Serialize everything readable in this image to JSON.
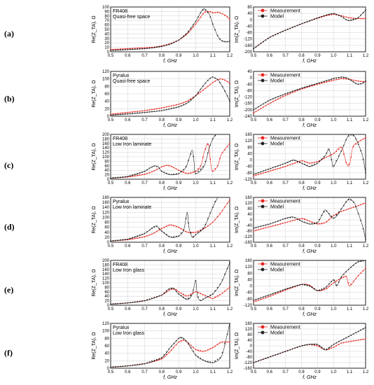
{
  "legend": {
    "measurement": "Measurement",
    "model": "Model"
  },
  "colors": {
    "measurement": "#e8261f",
    "model": "#222222"
  },
  "chart_data": [
    {
      "type": "line",
      "row": "(a)",
      "side": "left",
      "annotation": [
        "FR408",
        "Quasi-free space"
      ],
      "xlabel": "f, GHz",
      "ylabel": "Re(Z_TA), Ω",
      "xlim": [
        0.5,
        1.2
      ],
      "ylim": [
        0,
        100
      ],
      "yticks": [
        0,
        10,
        20,
        30,
        40,
        50,
        60,
        70,
        80,
        90,
        100
      ],
      "series": [
        {
          "name": "Measurement",
          "x": [
            0.5,
            0.55,
            0.6,
            0.65,
            0.7,
            0.75,
            0.8,
            0.85,
            0.9,
            0.95,
            1.0,
            1.03,
            1.05,
            1.08,
            1.1,
            1.13,
            1.15,
            1.18,
            1.2
          ],
          "y": [
            5,
            6,
            7,
            8,
            9,
            10,
            13,
            18,
            26,
            40,
            62,
            78,
            88,
            90,
            87,
            88,
            86,
            80,
            72
          ]
        },
        {
          "name": "Model",
          "x": [
            0.5,
            0.55,
            0.6,
            0.65,
            0.7,
            0.75,
            0.8,
            0.85,
            0.9,
            0.95,
            1.0,
            1.03,
            1.05,
            1.08,
            1.1,
            1.13,
            1.15,
            1.18,
            1.2
          ],
          "y": [
            3,
            4,
            5,
            6,
            7,
            9,
            12,
            17,
            26,
            42,
            68,
            88,
            96,
            84,
            62,
            35,
            25,
            22,
            24
          ]
        }
      ]
    },
    {
      "type": "line",
      "row": "(a)",
      "side": "right",
      "xlabel": "f, GHz",
      "ylabel": "Im(Z_TA), Ω",
      "xlim": [
        0.5,
        1.2
      ],
      "ylim": [
        -200,
        80
      ],
      "yticks": [
        -200,
        -160,
        -120,
        -80,
        -40,
        0,
        40,
        80
      ],
      "series": [
        {
          "name": "Measurement",
          "x": [
            0.5,
            0.6,
            0.7,
            0.8,
            0.9,
            0.95,
            1.0,
            1.05,
            1.1,
            1.15,
            1.2
          ],
          "y": [
            -180,
            -110,
            -65,
            -25,
            10,
            25,
            35,
            25,
            12,
            8,
            8
          ]
        },
        {
          "name": "Model",
          "x": [
            0.5,
            0.6,
            0.7,
            0.8,
            0.9,
            0.95,
            1.0,
            1.05,
            1.08,
            1.1,
            1.15,
            1.2
          ],
          "y": [
            -180,
            -110,
            -65,
            -25,
            12,
            28,
            40,
            20,
            0,
            -5,
            10,
            60
          ]
        }
      ]
    },
    {
      "type": "line",
      "row": "(b)",
      "side": "left",
      "annotation": [
        "Pyralux",
        "Quasi-free space"
      ],
      "xlabel": "f, GHz",
      "ylabel": "Re(Z_TA), Ω",
      "xlim": [
        0.5,
        1.2
      ],
      "ylim": [
        0,
        120
      ],
      "yticks": [
        0,
        20,
        40,
        60,
        80,
        100,
        120
      ],
      "series": [
        {
          "name": "Measurement",
          "x": [
            0.5,
            0.6,
            0.7,
            0.8,
            0.9,
            0.95,
            1.0,
            1.05,
            1.1,
            1.13,
            1.15,
            1.18,
            1.2
          ],
          "y": [
            5,
            10,
            15,
            22,
            32,
            40,
            55,
            72,
            90,
            98,
            100,
            95,
            88
          ]
        },
        {
          "name": "Model",
          "x": [
            0.5,
            0.6,
            0.7,
            0.8,
            0.9,
            0.95,
            1.0,
            1.05,
            1.08,
            1.1,
            1.13,
            1.15,
            1.18,
            1.2
          ],
          "y": [
            3,
            6,
            10,
            15,
            25,
            35,
            55,
            85,
            100,
            105,
            98,
            85,
            60,
            40
          ]
        }
      ]
    },
    {
      "type": "line",
      "row": "(b)",
      "side": "right",
      "xlabel": "f, GHz",
      "ylabel": "Im(Z_TA), Ω",
      "xlim": [
        0.5,
        1.2
      ],
      "ylim": [
        -240,
        40
      ],
      "yticks": [
        -240,
        -200,
        -160,
        -120,
        -80,
        -40,
        0,
        40
      ],
      "series": [
        {
          "name": "Measurement",
          "x": [
            0.5,
            0.6,
            0.7,
            0.8,
            0.9,
            1.0,
            1.05,
            1.1,
            1.15,
            1.2
          ],
          "y": [
            -220,
            -160,
            -110,
            -70,
            -40,
            -15,
            -5,
            -10,
            -20,
            -25
          ]
        },
        {
          "name": "Model",
          "x": [
            0.5,
            0.6,
            0.7,
            0.8,
            0.9,
            1.0,
            1.05,
            1.08,
            1.1,
            1.13,
            1.15,
            1.18,
            1.2
          ],
          "y": [
            -200,
            -140,
            -100,
            -65,
            -35,
            -5,
            5,
            0,
            -10,
            -30,
            -40,
            -35,
            -20
          ]
        }
      ]
    },
    {
      "type": "line",
      "row": "(c)",
      "side": "left",
      "annotation": [
        "FR408",
        "Low Iron laminate"
      ],
      "xlabel": "f, GHz",
      "ylabel": "Re(Z_TA), Ω",
      "xlim": [
        0.5,
        1.2
      ],
      "ylim": [
        0,
        200
      ],
      "yticks": [
        0,
        20,
        40,
        60,
        80,
        100,
        120,
        140,
        160,
        180,
        200
      ],
      "series": [
        {
          "name": "Measurement",
          "x": [
            0.5,
            0.6,
            0.7,
            0.75,
            0.8,
            0.83,
            0.85,
            0.9,
            0.95,
            1.0,
            1.03,
            1.05,
            1.07,
            1.08,
            1.09,
            1.1,
            1.13,
            1.15,
            1.2
          ],
          "y": [
            5,
            10,
            22,
            35,
            55,
            62,
            60,
            40,
            25,
            35,
            60,
            120,
            160,
            130,
            60,
            35,
            60,
            110,
            160
          ]
        },
        {
          "name": "Model",
          "x": [
            0.5,
            0.6,
            0.7,
            0.73,
            0.76,
            0.78,
            0.8,
            0.85,
            0.9,
            0.94,
            0.96,
            0.98,
            0.99,
            1.0,
            1.05,
            1.08,
            1.1,
            1.12
          ],
          "y": [
            5,
            12,
            35,
            50,
            60,
            55,
            35,
            20,
            25,
            50,
            90,
            130,
            80,
            25,
            60,
            140,
            180,
            200
          ]
        }
      ]
    },
    {
      "type": "line",
      "row": "(c)",
      "side": "right",
      "xlabel": "f, GHz",
      "ylabel": "Im(Z_TA), Ω",
      "xlim": [
        0.5,
        1.2
      ],
      "ylim": [
        -120,
        160
      ],
      "yticks": [
        -120,
        -80,
        -40,
        0,
        40,
        80,
        120,
        160
      ],
      "series": [
        {
          "name": "Measurement",
          "x": [
            0.5,
            0.6,
            0.7,
            0.8,
            0.85,
            0.9,
            0.95,
            1.0,
            1.05,
            1.08,
            1.1,
            1.12,
            1.15,
            1.2
          ],
          "y": [
            -100,
            -70,
            -40,
            -5,
            -20,
            -10,
            15,
            40,
            80,
            -20,
            -30,
            80,
            110,
            140
          ]
        },
        {
          "name": "Model",
          "x": [
            0.5,
            0.6,
            0.7,
            0.75,
            0.8,
            0.85,
            0.9,
            0.95,
            0.97,
            0.99,
            1.0,
            1.05,
            1.08,
            1.1,
            1.13,
            1.15,
            1.18,
            1.2
          ],
          "y": [
            -90,
            -55,
            -20,
            0,
            -20,
            -40,
            -20,
            30,
            70,
            -10,
            -40,
            60,
            130,
            160,
            150,
            110,
            30,
            -80
          ]
        }
      ]
    },
    {
      "type": "line",
      "row": "(d)",
      "side": "left",
      "annotation": [
        "Pyralux",
        "Low Iron laminate"
      ],
      "xlabel": "f, GHz",
      "ylabel": "Re(Z_TA), Ω",
      "xlim": [
        0.5,
        1.2
      ],
      "ylim": [
        0,
        180
      ],
      "yticks": [
        0,
        20,
        40,
        60,
        80,
        100,
        120,
        140,
        160,
        180
      ],
      "series": [
        {
          "name": "Measurement",
          "x": [
            0.5,
            0.6,
            0.7,
            0.75,
            0.8,
            0.85,
            0.9,
            0.95,
            1.0,
            1.05,
            1.1,
            1.15,
            1.2
          ],
          "y": [
            5,
            10,
            22,
            35,
            55,
            70,
            60,
            40,
            40,
            55,
            80,
            120,
            170
          ]
        },
        {
          "name": "Model",
          "x": [
            0.5,
            0.6,
            0.7,
            0.74,
            0.77,
            0.8,
            0.85,
            0.9,
            0.93,
            0.95,
            0.96,
            0.98,
            1.0,
            1.05,
            1.1,
            1.13
          ],
          "y": [
            5,
            12,
            35,
            55,
            65,
            45,
            20,
            25,
            50,
            120,
            60,
            20,
            30,
            60,
            140,
            190
          ]
        }
      ]
    },
    {
      "type": "line",
      "row": "(d)",
      "side": "right",
      "xlabel": "f, GHz",
      "ylabel": "Im(Z_TA), Ω",
      "xlim": [
        0.5,
        1.2
      ],
      "ylim": [
        -160,
        160
      ],
      "yticks": [
        -160,
        -120,
        -80,
        -40,
        0,
        40,
        80,
        120,
        160
      ],
      "series": [
        {
          "name": "Measurement",
          "x": [
            0.5,
            0.6,
            0.7,
            0.8,
            0.85,
            0.9,
            0.95,
            1.0,
            1.05,
            1.1,
            1.15,
            1.2
          ],
          "y": [
            -80,
            -50,
            -20,
            10,
            -10,
            -30,
            -20,
            30,
            60,
            80,
            100,
            120
          ]
        },
        {
          "name": "Model",
          "x": [
            0.5,
            0.6,
            0.7,
            0.75,
            0.8,
            0.85,
            0.9,
            0.93,
            0.95,
            1.0,
            1.05,
            1.08,
            1.1,
            1.13,
            1.15,
            1.18,
            1.2
          ],
          "y": [
            -60,
            -30,
            10,
            20,
            -10,
            -30,
            -20,
            40,
            70,
            10,
            80,
            130,
            150,
            120,
            60,
            -40,
            -140
          ]
        }
      ]
    },
    {
      "type": "line",
      "row": "(e)",
      "side": "left",
      "annotation": [
        "FR408",
        "Low Iron glass"
      ],
      "xlabel": "f, GHz",
      "ylabel": "Re(Z_TA), Ω",
      "xlim": [
        0.5,
        1.2
      ],
      "ylim": [
        0,
        200
      ],
      "yticks": [
        0,
        20,
        40,
        60,
        80,
        100,
        120,
        140,
        160,
        180,
        200
      ],
      "series": [
        {
          "name": "Measurement",
          "x": [
            0.5,
            0.6,
            0.7,
            0.8,
            0.85,
            0.88,
            0.9,
            0.95,
            1.0,
            1.05,
            1.1,
            1.15,
            1.2
          ],
          "y": [
            5,
            10,
            20,
            45,
            70,
            72,
            60,
            40,
            60,
            45,
            30,
            50,
            80
          ]
        },
        {
          "name": "Model",
          "x": [
            0.5,
            0.6,
            0.7,
            0.8,
            0.84,
            0.87,
            0.9,
            0.95,
            0.98,
            1.0,
            1.01,
            1.03,
            1.05,
            1.1,
            1.15,
            1.2
          ],
          "y": [
            5,
            10,
            20,
            45,
            72,
            75,
            50,
            25,
            50,
            110,
            40,
            20,
            30,
            50,
            100,
            190
          ]
        }
      ]
    },
    {
      "type": "line",
      "row": "(e)",
      "side": "right",
      "xlabel": "f, GHz",
      "ylabel": "Im(Z_TA), Ω",
      "xlim": [
        0.5,
        1.2
      ],
      "ylim": [
        -120,
        160
      ],
      "yticks": [
        -120,
        -80,
        -40,
        0,
        40,
        80,
        120,
        160
      ],
      "series": [
        {
          "name": "Measurement",
          "x": [
            0.5,
            0.6,
            0.7,
            0.8,
            0.85,
            0.9,
            0.95,
            1.0,
            1.05,
            1.08,
            1.1,
            1.15,
            1.2
          ],
          "y": [
            -100,
            -65,
            -25,
            10,
            5,
            -30,
            -20,
            20,
            50,
            60,
            0,
            60,
            110
          ]
        },
        {
          "name": "Model",
          "x": [
            0.5,
            0.6,
            0.7,
            0.8,
            0.85,
            0.9,
            0.95,
            1.0,
            1.02,
            1.05,
            1.1,
            1.15,
            1.2
          ],
          "y": [
            -90,
            -55,
            -20,
            10,
            0,
            -30,
            -10,
            40,
            0,
            60,
            110,
            150,
            160
          ]
        }
      ]
    },
    {
      "type": "line",
      "row": "(f)",
      "side": "left",
      "annotation": [
        "Pyralux",
        "Low Iron glass"
      ],
      "xlabel": "f, GHz",
      "ylabel": "Re(Z_TA), Ω",
      "xlim": [
        0.5,
        1.2
      ],
      "ylim": [
        0,
        120
      ],
      "yticks": [
        0,
        20,
        40,
        60,
        80,
        100,
        120
      ],
      "series": [
        {
          "name": "Measurement",
          "x": [
            0.5,
            0.6,
            0.7,
            0.8,
            0.85,
            0.9,
            0.93,
            0.95,
            1.0,
            1.05,
            1.1,
            1.15,
            1.2
          ],
          "y": [
            3,
            6,
            12,
            25,
            45,
            70,
            75,
            70,
            50,
            45,
            55,
            70,
            70
          ]
        },
        {
          "name": "Model",
          "x": [
            0.5,
            0.6,
            0.7,
            0.8,
            0.85,
            0.9,
            0.92,
            0.95,
            1.0,
            1.05,
            1.1,
            1.15,
            1.18,
            1.2
          ],
          "y": [
            3,
            6,
            12,
            28,
            55,
            80,
            82,
            70,
            35,
            20,
            15,
            30,
            80,
            120
          ]
        }
      ]
    },
    {
      "type": "line",
      "row": "(f)",
      "side": "right",
      "xlabel": "f, GHz",
      "ylabel": "Im(Z_TA), Ω",
      "xlim": [
        0.5,
        1.2
      ],
      "ylim": [
        -160,
        160
      ],
      "yticks": [
        -160,
        -120,
        -80,
        -40,
        0,
        40,
        80,
        120,
        160
      ],
      "series": [
        {
          "name": "Measurement",
          "x": [
            0.5,
            0.6,
            0.7,
            0.8,
            0.85,
            0.9,
            0.95,
            1.0,
            1.05,
            1.1,
            1.15,
            1.2
          ],
          "y": [
            -120,
            -80,
            -40,
            0,
            10,
            0,
            -30,
            -10,
            20,
            30,
            40,
            50
          ]
        },
        {
          "name": "Model",
          "x": [
            0.5,
            0.6,
            0.7,
            0.8,
            0.85,
            0.9,
            0.95,
            1.0,
            1.05,
            1.1,
            1.15,
            1.2
          ],
          "y": [
            -120,
            -80,
            -40,
            0,
            10,
            10,
            -30,
            10,
            40,
            70,
            100,
            130
          ]
        }
      ]
    }
  ]
}
